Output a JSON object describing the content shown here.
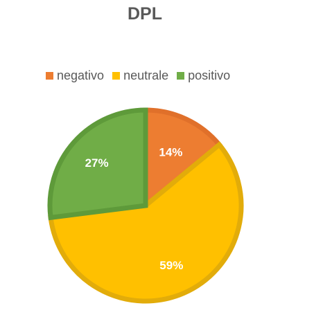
{
  "chart_data": {
    "type": "pie",
    "title": "DPL",
    "legend_position": "top",
    "slices": [
      {
        "name": "negativo",
        "value": 14,
        "label": "14%",
        "color": "#ED7D31",
        "border": "#E0702A"
      },
      {
        "name": "neutrale",
        "value": 59,
        "label": "59%",
        "color": "#FFC000",
        "border": "#E2AC0A"
      },
      {
        "name": "positivo",
        "value": 27,
        "label": "27%",
        "color": "#70AD47",
        "border": "#5E9A3A"
      }
    ]
  }
}
